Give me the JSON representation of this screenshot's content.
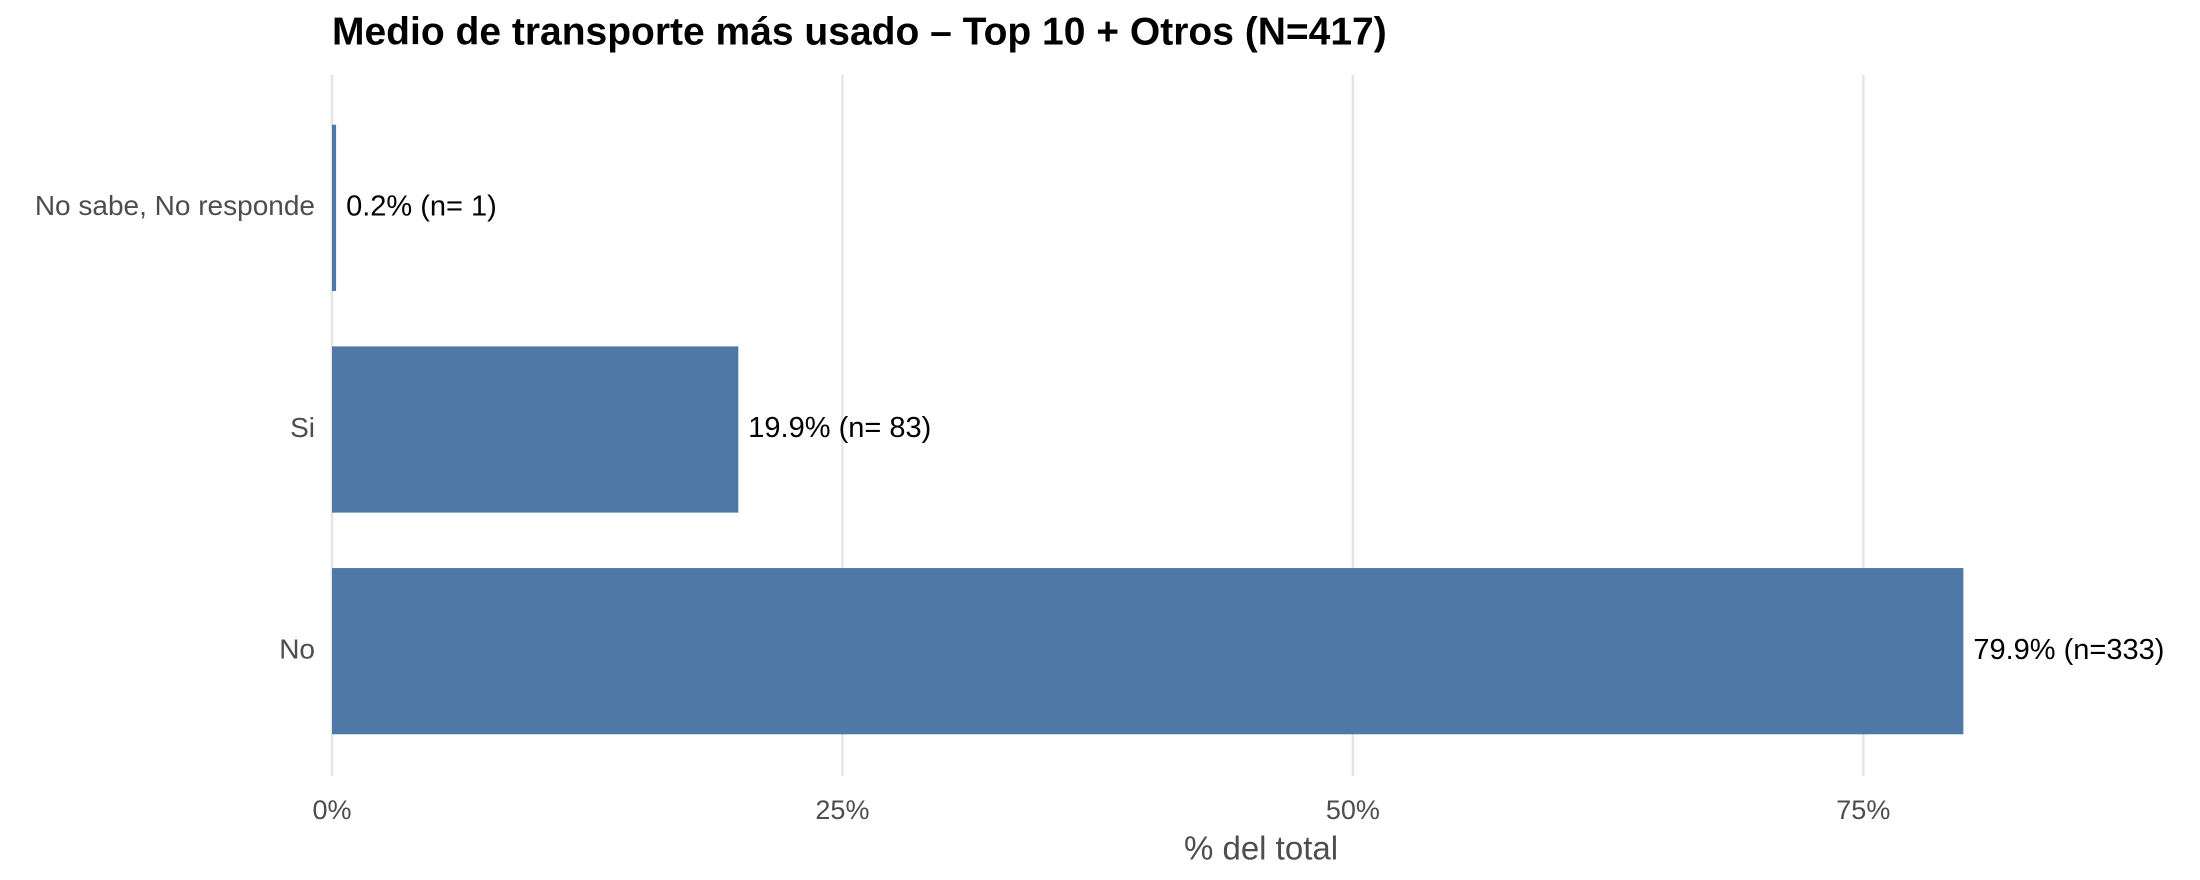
{
  "chart_data": {
    "type": "hbar",
    "title": "Medio de transporte más usado – Top 10 + Otros (N=417)",
    "categories": [
      "No sabe, No responde",
      "Si",
      "No"
    ],
    "values": [
      0.2,
      19.9,
      79.9
    ],
    "value_labels": [
      "0.2%  (n=  1)",
      "19.9%  (n= 83)",
      "79.9%  (n=333)"
    ],
    "color": "#4e79a7",
    "xlabel": "% del total",
    "xlim": [
      0,
      91
    ],
    "xticks": [
      {
        "value": 0,
        "label": "0%"
      },
      {
        "value": 25,
        "label": "25%"
      },
      {
        "value": 50,
        "label": "50%"
      },
      {
        "value": 75,
        "label": "75%"
      }
    ],
    "grid": true
  }
}
